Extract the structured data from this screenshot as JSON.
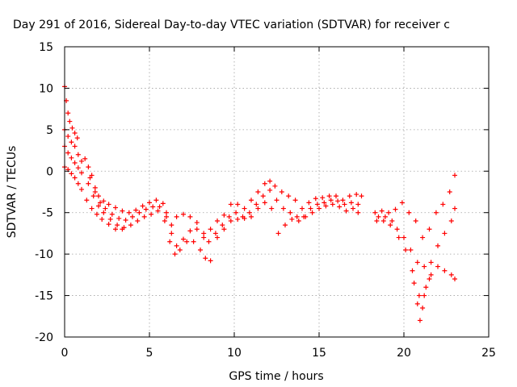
{
  "chart_data": {
    "type": "scatter",
    "title": "Day 291 of 2016, Sidereal Day-to-day VTEC variation (SDTVAR) for receiver c",
    "xlabel": "GPS time / hours",
    "ylabel": "SDTVAR / TECUs",
    "xlim": [
      0,
      25
    ],
    "ylim": [
      -20,
      15
    ],
    "x_ticks": [
      "0",
      "5",
      "10",
      "15",
      "20",
      "25"
    ],
    "y_ticks": [
      "15",
      "10",
      "5",
      "0",
      "-5",
      "-10",
      "-15",
      "-20"
    ],
    "x_tick_values": [
      0,
      5,
      10,
      15,
      20,
      25
    ],
    "y_tick_values": [
      15,
      10,
      5,
      0,
      -5,
      -10,
      -15,
      -20
    ],
    "grid": true,
    "marker": "plus",
    "color": "#ff0000",
    "series": [
      {
        "points": [
          [
            0.0,
            10.2
          ],
          [
            0.1,
            8.5
          ],
          [
            0.2,
            7.0
          ],
          [
            0.3,
            6.0
          ],
          [
            0.45,
            5.2
          ],
          [
            0.6,
            4.6
          ],
          [
            0.75,
            4.0
          ],
          [
            1.2,
            1.5
          ],
          [
            1.4,
            0.5
          ],
          [
            1.6,
            -0.5
          ],
          [
            1.8,
            -2.0
          ],
          [
            2.0,
            -3.0
          ],
          [
            2.3,
            -3.6
          ],
          [
            2.6,
            -4.0
          ],
          [
            3.0,
            -4.4
          ],
          [
            3.4,
            -4.8
          ],
          [
            3.8,
            -5.0
          ],
          [
            4.2,
            -4.7
          ],
          [
            4.6,
            -4.2
          ],
          [
            5.0,
            -3.8
          ],
          [
            5.4,
            -3.5
          ],
          [
            5.8,
            -3.9
          ],
          [
            6.0,
            -5.0
          ],
          [
            6.3,
            -6.5
          ],
          [
            6.6,
            -5.5
          ],
          [
            7.0,
            -5.2
          ],
          [
            7.4,
            -5.5
          ],
          [
            7.8,
            -6.2
          ],
          [
            8.2,
            -7.5
          ],
          [
            8.6,
            -7.0
          ],
          [
            9.0,
            -6.0
          ],
          [
            9.4,
            -5.3
          ],
          [
            9.8,
            -4.0
          ],
          [
            10.2,
            -4.0
          ],
          [
            10.6,
            -4.5
          ],
          [
            11.0,
            -3.5
          ],
          [
            11.4,
            -2.5
          ],
          [
            11.8,
            -1.5
          ],
          [
            12.1,
            -1.2
          ],
          [
            12.4,
            -1.8
          ],
          [
            12.8,
            -2.5
          ],
          [
            13.2,
            -3.0
          ],
          [
            13.6,
            -3.5
          ],
          [
            14.0,
            -4.5
          ],
          [
            14.4,
            -3.8
          ],
          [
            14.8,
            -3.3
          ],
          [
            15.2,
            -3.2
          ],
          [
            15.6,
            -3.0
          ],
          [
            16.0,
            -3.0
          ],
          [
            16.4,
            -3.5
          ],
          [
            16.8,
            -3.0
          ],
          [
            17.2,
            -2.8
          ],
          [
            17.5,
            -3.0
          ],
          [
            18.3,
            -5.0
          ],
          [
            18.7,
            -4.8
          ],
          [
            19.1,
            -5.0
          ],
          [
            19.5,
            -4.6
          ],
          [
            19.9,
            -3.8
          ],
          [
            20.3,
            -5.0
          ],
          [
            20.7,
            -6.0
          ],
          [
            21.1,
            -8.0
          ],
          [
            21.5,
            -7.0
          ],
          [
            21.9,
            -5.0
          ],
          [
            22.3,
            -4.0
          ],
          [
            22.7,
            -2.5
          ],
          [
            23.0,
            -0.5
          ]
        ]
      },
      {
        "points": [
          [
            0.0,
            5.0
          ],
          [
            0.2,
            4.2
          ],
          [
            0.4,
            3.5
          ],
          [
            0.6,
            3.0
          ],
          [
            0.8,
            2.0
          ],
          [
            1.0,
            1.2
          ],
          [
            1.5,
            -0.8
          ],
          [
            1.8,
            -2.5
          ],
          [
            2.1,
            -3.8
          ],
          [
            2.4,
            -4.5
          ],
          [
            2.8,
            -5.2
          ],
          [
            3.2,
            -5.7
          ],
          [
            3.6,
            -5.9
          ],
          [
            4.0,
            -5.5
          ],
          [
            4.4,
            -5.0
          ],
          [
            4.8,
            -4.6
          ],
          [
            5.2,
            -4.3
          ],
          [
            5.6,
            -4.3
          ],
          [
            6.0,
            -5.5
          ],
          [
            6.3,
            -7.5
          ],
          [
            6.6,
            -9.0
          ],
          [
            7.0,
            -8.2
          ],
          [
            7.4,
            -7.2
          ],
          [
            7.8,
            -7.0
          ],
          [
            8.2,
            -8.0
          ],
          [
            8.5,
            -8.5
          ],
          [
            8.9,
            -7.5
          ],
          [
            9.3,
            -6.5
          ],
          [
            9.7,
            -5.5
          ],
          [
            10.1,
            -5.0
          ],
          [
            10.5,
            -5.5
          ],
          [
            10.9,
            -5.0
          ],
          [
            11.3,
            -4.0
          ],
          [
            11.7,
            -3.0
          ],
          [
            12.1,
            -2.3
          ],
          [
            12.5,
            -3.5
          ],
          [
            12.9,
            -4.5
          ],
          [
            13.3,
            -5.0
          ],
          [
            13.7,
            -5.5
          ],
          [
            14.1,
            -5.5
          ],
          [
            14.5,
            -4.5
          ],
          [
            14.9,
            -4.0
          ],
          [
            15.3,
            -3.8
          ],
          [
            15.7,
            -3.5
          ],
          [
            16.1,
            -3.6
          ],
          [
            16.5,
            -4.0
          ],
          [
            16.9,
            -3.8
          ],
          [
            17.3,
            -4.0
          ],
          [
            18.4,
            -6.0
          ],
          [
            18.8,
            -6.0
          ],
          [
            19.2,
            -6.5
          ],
          [
            19.6,
            -7.0
          ],
          [
            20.0,
            -8.0
          ],
          [
            20.4,
            -9.5
          ],
          [
            20.8,
            -11.0
          ],
          [
            21.2,
            -11.5
          ],
          [
            21.6,
            -11.0
          ],
          [
            22.0,
            -9.0
          ],
          [
            22.4,
            -7.5
          ],
          [
            22.8,
            -6.0
          ],
          [
            23.0,
            -4.5
          ]
        ]
      },
      {
        "points": [
          [
            0.0,
            3.0
          ],
          [
            0.2,
            2.2
          ],
          [
            0.4,
            1.6
          ],
          [
            0.6,
            1.0
          ],
          [
            0.8,
            0.4
          ],
          [
            1.0,
            -0.2
          ],
          [
            1.4,
            -1.5
          ],
          [
            1.7,
            -3.0
          ],
          [
            2.0,
            -4.2
          ],
          [
            2.3,
            -5.0
          ],
          [
            2.7,
            -5.8
          ],
          [
            3.1,
            -6.5
          ],
          [
            3.5,
            -6.8
          ],
          [
            3.9,
            -6.5
          ],
          [
            4.3,
            -6.0
          ],
          [
            4.7,
            -5.5
          ],
          [
            5.1,
            -5.2
          ],
          [
            5.5,
            -4.8
          ],
          [
            5.9,
            -6.0
          ],
          [
            6.2,
            -8.5
          ],
          [
            6.5,
            -10.0
          ],
          [
            6.8,
            -9.5
          ],
          [
            7.2,
            -8.5
          ],
          [
            7.6,
            -8.5
          ],
          [
            8.0,
            -9.5
          ],
          [
            8.3,
            -10.5
          ],
          [
            8.6,
            -10.8
          ],
          [
            9.0,
            -8.0
          ],
          [
            9.4,
            -7.0
          ],
          [
            9.8,
            -6.0
          ],
          [
            10.2,
            -5.8
          ],
          [
            10.6,
            -5.7
          ],
          [
            11.0,
            -5.5
          ],
          [
            11.4,
            -4.5
          ],
          [
            11.8,
            -3.8
          ],
          [
            12.2,
            -4.5
          ],
          [
            12.6,
            -7.5
          ],
          [
            13.0,
            -6.5
          ],
          [
            13.4,
            -5.8
          ],
          [
            13.8,
            -6.0
          ],
          [
            14.2,
            -5.5
          ],
          [
            14.6,
            -5.0
          ],
          [
            15.0,
            -4.5
          ],
          [
            15.4,
            -4.2
          ],
          [
            15.8,
            -4.0
          ],
          [
            16.2,
            -4.3
          ],
          [
            16.6,
            -4.8
          ],
          [
            17.0,
            -4.5
          ],
          [
            17.3,
            -5.0
          ],
          [
            18.5,
            -5.5
          ],
          [
            18.9,
            -5.5
          ],
          [
            19.3,
            -6.0
          ],
          [
            19.7,
            -8.0
          ],
          [
            20.1,
            -9.5
          ],
          [
            20.5,
            -12.0
          ],
          [
            20.9,
            -15.0
          ],
          [
            21.1,
            -16.5
          ],
          [
            21.3,
            -14.0
          ],
          [
            21.6,
            -12.5
          ],
          [
            22.0,
            -11.5
          ],
          [
            22.4,
            -12.0
          ],
          [
            22.8,
            -12.5
          ],
          [
            23.0,
            -13.0
          ]
        ]
      },
      {
        "points": [
          [
            0.0,
            0.5
          ],
          [
            0.2,
            0.2
          ],
          [
            0.4,
            -0.3
          ],
          [
            0.6,
            -0.8
          ],
          [
            0.8,
            -1.5
          ],
          [
            1.0,
            -2.2
          ],
          [
            1.3,
            -3.5
          ],
          [
            1.6,
            -4.5
          ],
          [
            1.9,
            -5.2
          ],
          [
            2.2,
            -5.8
          ],
          [
            2.6,
            -6.4
          ],
          [
            3.0,
            -7.0
          ],
          [
            3.4,
            -7.0
          ],
          [
            20.6,
            -13.5
          ],
          [
            20.8,
            -16.0
          ],
          [
            20.95,
            -18.0
          ],
          [
            21.2,
            -15.0
          ],
          [
            21.5,
            -13.0
          ]
        ]
      }
    ]
  }
}
